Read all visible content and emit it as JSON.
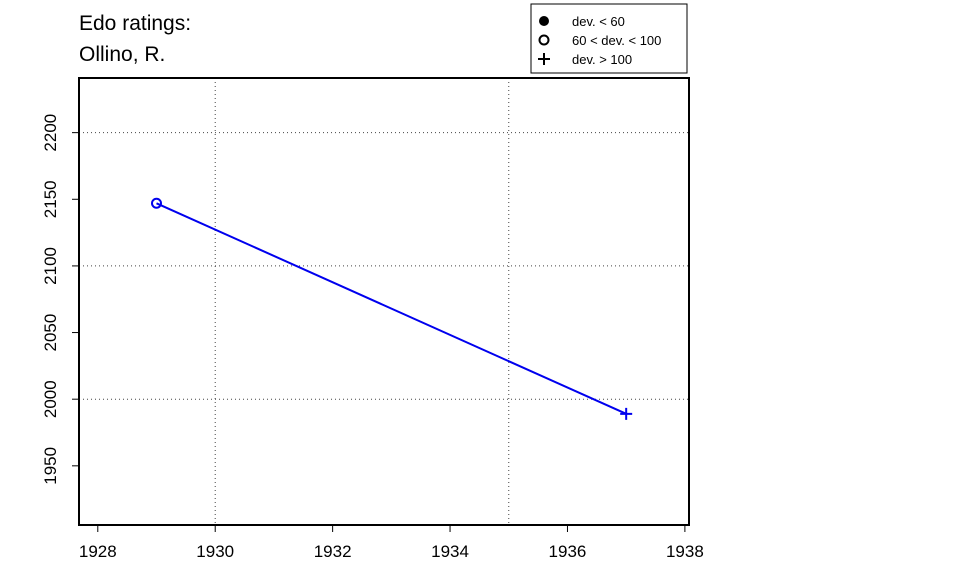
{
  "chart_data": {
    "type": "line",
    "title": [
      "Edo ratings:",
      "Ollino, R."
    ],
    "x": [
      1929,
      1937
    ],
    "series": [
      {
        "color": "#0000ee",
        "values": [
          2147,
          1989
        ],
        "markers": [
          "open-circle",
          "plus"
        ]
      }
    ],
    "xlim": [
      1927.68,
      1938.07
    ],
    "ylim": [
      1905.6,
      2241
    ],
    "xticks": [
      1928,
      1930,
      1932,
      1934,
      1936,
      1938
    ],
    "yticks": [
      1950,
      2000,
      2050,
      2100,
      2150,
      2200
    ],
    "xgrid": [
      1930,
      1935
    ],
    "ygrid": [
      2000,
      2100,
      2200
    ],
    "legend": [
      {
        "label": "dev. < 60",
        "marker": "filled-circle"
      },
      {
        "label": "60 < dev. < 100",
        "marker": "open-circle"
      },
      {
        "label": "dev. > 100",
        "marker": "plus"
      }
    ],
    "legend_position": "top-right"
  }
}
